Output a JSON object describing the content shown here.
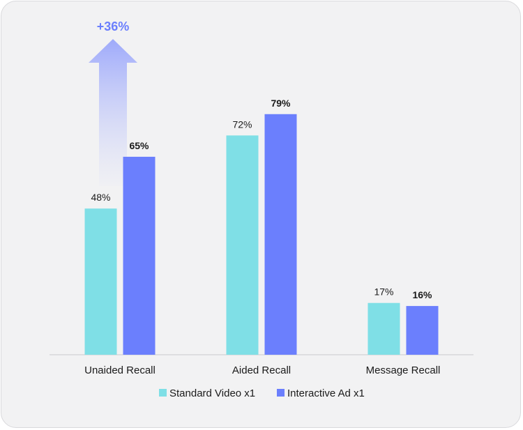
{
  "chart_data": {
    "type": "bar",
    "categories": [
      "Unaided Recall",
      "Aided Recall",
      "Message Recall"
    ],
    "series": [
      {
        "name": "Standard Video x1",
        "values": [
          48,
          72,
          17
        ],
        "labels": [
          "48%",
          "72%",
          "17%"
        ],
        "color": "#7fdfe6"
      },
      {
        "name": "Interactive Ad x1",
        "values": [
          65,
          79,
          16
        ],
        "labels": [
          "65%",
          "79%",
          "16%"
        ],
        "color": "#6b7ffd"
      }
    ],
    "ylim": [
      0,
      100
    ],
    "grid": false,
    "legend_position": "bottom",
    "annotation": {
      "text": "+36%",
      "category": "Unaided Recall",
      "color": "#6b7ffd"
    }
  }
}
